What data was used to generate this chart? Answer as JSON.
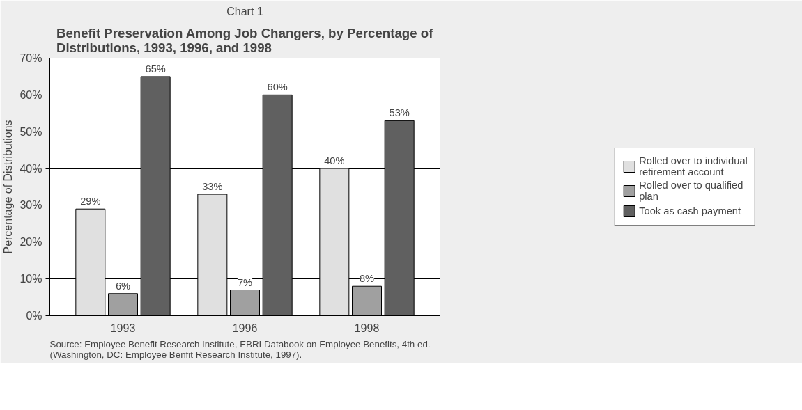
{
  "chart_data": {
    "type": "bar",
    "subtitle": "Chart 1",
    "title": "Benefit Preservation Among Job Changers, by Percentage of Distributions, 1993, 1996, and 1998",
    "ylabel": "Percentage of Distributions",
    "categories": [
      "1993",
      "1996",
      "1998"
    ],
    "series": [
      {
        "name": "Rolled over to individual retirement account",
        "color": "#e0e0e0",
        "values": [
          29,
          33,
          40
        ],
        "value_labels": [
          "29%",
          "33%",
          "40%"
        ]
      },
      {
        "name": "Rolled over to qualified plan",
        "color": "#a0a0a0",
        "values": [
          6,
          7,
          8
        ],
        "value_labels": [
          "6%",
          "7%",
          "8%"
        ]
      },
      {
        "name": "Took as cash payment",
        "color": "#606060",
        "values": [
          65,
          60,
          53
        ],
        "value_labels": [
          "65%",
          "60%",
          "53%"
        ]
      }
    ],
    "ylim": [
      0,
      70
    ],
    "yticks": [
      {
        "value": 0,
        "label": "0%"
      },
      {
        "value": 10,
        "label": "10%"
      },
      {
        "value": 20,
        "label": "20%"
      },
      {
        "value": 30,
        "label": "30%"
      },
      {
        "value": 40,
        "label": "40%"
      },
      {
        "value": 50,
        "label": "50%"
      },
      {
        "value": 60,
        "label": "60%"
      },
      {
        "value": 70,
        "label": "70%"
      }
    ],
    "grid": "y",
    "legend": "right",
    "annotations": [
      "Source: Employee Benefit Research Institute, EBRI Databook on Employee Benefits, 4th ed.  (Washington, DC: Employee Benfit Research Institute, 1997)."
    ]
  }
}
